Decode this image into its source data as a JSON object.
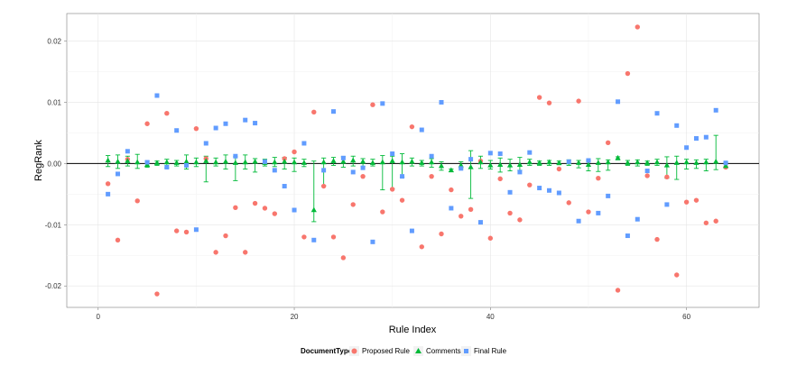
{
  "chart_data": {
    "type": "scatter",
    "title": "",
    "xlabel": "Rule Index",
    "ylabel": "RegRank",
    "xlim": [
      -3.2,
      67.4
    ],
    "ylim": [
      -0.0235,
      0.0245
    ],
    "x_ticks": [
      0,
      20,
      40,
      60
    ],
    "x_tick_labels": [
      "0",
      "20",
      "40",
      "60"
    ],
    "y_ticks": [
      -0.02,
      -0.01,
      0.0,
      0.01,
      0.02
    ],
    "y_tick_labels": [
      "-0.02",
      "-0.01",
      "0.00",
      "0.01",
      "0.02"
    ],
    "grid": true,
    "reference_line_y": 0,
    "legend": {
      "title": "DocumentType",
      "position": "bottom"
    },
    "colors": {
      "Proposed Rule": "#F8766D",
      "Comments": "#00BA38",
      "Final Rule": "#619CFF"
    },
    "series": [
      {
        "name": "Proposed Rule",
        "marker": "circle",
        "points": [
          [
            1,
            -0.0033
          ],
          [
            2,
            -0.0125
          ],
          [
            3,
            0.0007
          ],
          [
            4,
            -0.0061
          ],
          [
            5,
            0.0065
          ],
          [
            6,
            -0.0213
          ],
          [
            7,
            0.0082
          ],
          [
            8,
            -0.011
          ],
          [
            9,
            -0.0112
          ],
          [
            10,
            0.0057
          ],
          [
            11,
            0.0008
          ],
          [
            12,
            -0.0145
          ],
          [
            13,
            -0.0118
          ],
          [
            14,
            -0.0072
          ],
          [
            15,
            -0.0145
          ],
          [
            16,
            -0.0065
          ],
          [
            17,
            -0.0073
          ],
          [
            18,
            -0.0082
          ],
          [
            19,
            0.0008
          ],
          [
            20,
            0.0019
          ],
          [
            21,
            -0.012
          ],
          [
            22,
            0.0084
          ],
          [
            23,
            -0.0037
          ],
          [
            24,
            -0.012
          ],
          [
            25,
            -0.0154
          ],
          [
            26,
            -0.0067
          ],
          [
            27,
            -0.0021
          ],
          [
            28,
            0.0096
          ],
          [
            29,
            -0.0079
          ],
          [
            30,
            -0.0042
          ],
          [
            31,
            -0.006
          ],
          [
            32,
            0.006
          ],
          [
            33,
            -0.0136
          ],
          [
            34,
            -0.0021
          ],
          [
            35,
            -0.0115
          ],
          [
            36,
            -0.0043
          ],
          [
            37,
            -0.0086
          ],
          [
            38,
            -0.0075
          ],
          [
            39,
            0.0004
          ],
          [
            40,
            -0.0122
          ],
          [
            41,
            -0.0025
          ],
          [
            42,
            -0.0081
          ],
          [
            43,
            -0.0092
          ],
          [
            44,
            -0.0035
          ],
          [
            45,
            0.0108
          ],
          [
            46,
            0.0099
          ],
          [
            47,
            -0.0009
          ],
          [
            48,
            -0.0064
          ],
          [
            49,
            0.0102
          ],
          [
            50,
            -0.0079
          ],
          [
            51,
            -0.0024
          ],
          [
            52,
            0.0034
          ],
          [
            53,
            -0.0207
          ],
          [
            54,
            0.0147
          ],
          [
            55,
            0.0223
          ],
          [
            56,
            -0.002
          ],
          [
            57,
            -0.0124
          ],
          [
            58,
            -0.0022
          ],
          [
            59,
            -0.0182
          ],
          [
            60,
            -0.0063
          ],
          [
            61,
            -0.006
          ],
          [
            62,
            -0.0097
          ],
          [
            63,
            -0.0094
          ],
          [
            64,
            -0.0006
          ]
        ]
      },
      {
        "name": "Comments",
        "marker": "triangle",
        "points": [
          [
            1,
            0.0005
          ],
          [
            2,
            0.0003
          ],
          [
            3,
            0.0004
          ],
          [
            4,
            0.0002
          ],
          [
            5,
            -0.0002
          ],
          [
            6,
            0.0001
          ],
          [
            7,
            0.0002
          ],
          [
            8,
            0.0001
          ],
          [
            9,
            0.0003
          ],
          [
            10,
            0.0002
          ],
          [
            11,
            0.0004
          ],
          [
            12,
            0.0002
          ],
          [
            13,
            0.0003
          ],
          [
            14,
            0.0001
          ],
          [
            15,
            0.0002
          ],
          [
            16,
            0.0003
          ],
          [
            17,
            0.0001
          ],
          [
            18,
            0.0002
          ],
          [
            19,
            0.0003
          ],
          [
            20,
            0.0002
          ],
          [
            21,
            0.0001
          ],
          [
            22,
            -0.0076
          ],
          [
            23,
            0.0002
          ],
          [
            24,
            0.0004
          ],
          [
            25,
            0.0003
          ],
          [
            26,
            0.0005
          ],
          [
            27,
            0.0003
          ],
          [
            28,
            0.0001
          ],
          [
            29,
            0.0002
          ],
          [
            30,
            0.0004
          ],
          [
            31,
            0.0002
          ],
          [
            32,
            0.0003
          ],
          [
            33,
            0.0001
          ],
          [
            34,
            0.0002
          ],
          [
            35,
            -0.0004
          ],
          [
            36,
            -0.0011
          ],
          [
            37,
            -0.0003
          ],
          [
            38,
            -0.0006
          ],
          [
            39,
            0.0002
          ],
          [
            40,
            -0.0003
          ],
          [
            41,
            -0.0002
          ],
          [
            42,
            -0.0003
          ],
          [
            43,
            -0.0002
          ],
          [
            44,
            0.0002
          ],
          [
            45,
            0.0001
          ],
          [
            46,
            0.0002
          ],
          [
            47,
            0.0001
          ],
          [
            48,
            0.0002
          ],
          [
            49,
            0.0001
          ],
          [
            50,
            -0.0002
          ],
          [
            51,
            0.0001
          ],
          [
            52,
            0.0002
          ],
          [
            53,
            0.0009
          ],
          [
            54,
            0.0001
          ],
          [
            55,
            0.0002
          ],
          [
            56,
            0.0001
          ],
          [
            57,
            0.0002
          ],
          [
            58,
            -0.0003
          ],
          [
            59,
            0.0001
          ],
          [
            60,
            0.0002
          ],
          [
            61,
            0.0001
          ],
          [
            62,
            0.0002
          ],
          [
            63,
            0.0003
          ],
          [
            64,
            -0.0004
          ]
        ],
        "error_bars": [
          [
            1,
            -0.0005,
            0.0013
          ],
          [
            2,
            -0.0008,
            0.0014
          ],
          [
            3,
            -0.0004,
            0.0012
          ],
          [
            4,
            -0.0008,
            0.0015
          ],
          [
            5,
            -0.0006,
            0.0004
          ],
          [
            6,
            -0.0003,
            0.0004
          ],
          [
            7,
            -0.0007,
            0.0007
          ],
          [
            8,
            -0.0004,
            0.0005
          ],
          [
            9,
            -0.0009,
            0.0014
          ],
          [
            10,
            -0.0005,
            0.0009
          ],
          [
            11,
            -0.003,
            0.0012
          ],
          [
            12,
            -0.0004,
            0.0009
          ],
          [
            13,
            -0.0009,
            0.0014
          ],
          [
            14,
            -0.0028,
            0.0011
          ],
          [
            15,
            -0.0009,
            0.0014
          ],
          [
            16,
            -0.0014,
            0.0008
          ],
          [
            17,
            -0.0004,
            0.0007
          ],
          [
            18,
            -0.0005,
            0.001
          ],
          [
            19,
            -0.0009,
            0.001
          ],
          [
            20,
            -0.0013,
            0.0009
          ],
          [
            21,
            -0.0005,
            0.0007
          ],
          [
            22,
            -0.0095,
            0.0004
          ],
          [
            23,
            -0.0036,
            0.0009
          ],
          [
            24,
            -0.0003,
            0.001
          ],
          [
            25,
            -0.0006,
            0.0011
          ],
          [
            26,
            -0.0004,
            0.0012
          ],
          [
            27,
            -0.0005,
            0.0008
          ],
          [
            28,
            -0.0004,
            0.0007
          ],
          [
            29,
            -0.0043,
            0.0013
          ],
          [
            30,
            -0.0041,
            0.0012
          ],
          [
            31,
            -0.0022,
            0.0016
          ],
          [
            32,
            -0.0004,
            0.0009
          ],
          [
            33,
            -0.0004,
            0.0005
          ],
          [
            34,
            -0.0006,
            0.0008
          ],
          [
            35,
            -0.0011,
            0.0003
          ],
          [
            36,
            -0.0013,
            -0.0009
          ],
          [
            37,
            -0.0008,
            0.0003
          ],
          [
            38,
            -0.0057,
            0.0021
          ],
          [
            39,
            -0.0008,
            0.0012
          ],
          [
            40,
            -0.0009,
            0.0005
          ],
          [
            41,
            -0.0014,
            0.0009
          ],
          [
            42,
            -0.0012,
            0.0007
          ],
          [
            43,
            -0.0011,
            0.001
          ],
          [
            44,
            -0.0003,
            0.0007
          ],
          [
            45,
            -0.0003,
            0.0004
          ],
          [
            46,
            -0.0003,
            0.0005
          ],
          [
            47,
            -0.0002,
            0.0004
          ],
          [
            48,
            -0.0003,
            0.0006
          ],
          [
            49,
            -0.0007,
            0.0005
          ],
          [
            50,
            -0.0012,
            0.0005
          ],
          [
            51,
            -0.0013,
            0.0008
          ],
          [
            52,
            -0.0011,
            0.0006
          ],
          [
            53,
            0.0006,
            0.0011
          ],
          [
            54,
            -0.0003,
            0.0005
          ],
          [
            55,
            -0.0004,
            0.0006
          ],
          [
            56,
            -0.0003,
            0.0004
          ],
          [
            57,
            -0.0003,
            0.0007
          ],
          [
            58,
            -0.0024,
            0.0011
          ],
          [
            59,
            -0.0026,
            0.0012
          ],
          [
            60,
            -0.0009,
            0.0007
          ],
          [
            61,
            -0.0008,
            0.0006
          ],
          [
            62,
            -0.0012,
            0.0007
          ],
          [
            63,
            -0.001,
            0.0046
          ],
          [
            64,
            -0.0006,
            0.0002
          ]
        ]
      },
      {
        "name": "Final Rule",
        "marker": "square",
        "points": [
          [
            1,
            -0.005
          ],
          [
            2,
            -0.0017
          ],
          [
            3,
            0.002
          ],
          [
            5,
            0.0002
          ],
          [
            6,
            0.0111
          ],
          [
            7,
            -0.0006
          ],
          [
            8,
            0.0054
          ],
          [
            9,
            -0.0003
          ],
          [
            10,
            -0.0108
          ],
          [
            11,
            0.0033
          ],
          [
            12,
            0.0058
          ],
          [
            13,
            0.0065
          ],
          [
            14,
            0.0012
          ],
          [
            15,
            0.0071
          ],
          [
            16,
            0.0066
          ],
          [
            17,
            0.0003
          ],
          [
            18,
            -0.0011
          ],
          [
            19,
            -0.0037
          ],
          [
            20,
            -0.0076
          ],
          [
            21,
            0.0033
          ],
          [
            22,
            -0.0125
          ],
          [
            23,
            -0.0011
          ],
          [
            24,
            0.0085
          ],
          [
            25,
            0.0009
          ],
          [
            26,
            -0.0014
          ],
          [
            27,
            -0.0007
          ],
          [
            28,
            -0.0128
          ],
          [
            29,
            0.0098
          ],
          [
            30,
            0.0016
          ],
          [
            31,
            -0.0021
          ],
          [
            32,
            -0.011
          ],
          [
            33,
            0.0055
          ],
          [
            34,
            0.0012
          ],
          [
            35,
            0.01
          ],
          [
            36,
            -0.0073
          ],
          [
            37,
            -0.0008
          ],
          [
            38,
            0.0007
          ],
          [
            39,
            -0.0096
          ],
          [
            40,
            0.0017
          ],
          [
            41,
            0.0016
          ],
          [
            42,
            -0.0047
          ],
          [
            43,
            -0.0014
          ],
          [
            44,
            0.0018
          ],
          [
            45,
            -0.004
          ],
          [
            46,
            -0.0044
          ],
          [
            47,
            -0.0048
          ],
          [
            48,
            0.0003
          ],
          [
            49,
            -0.0094
          ],
          [
            50,
            0.0005
          ],
          [
            51,
            -0.0081
          ],
          [
            52,
            -0.0053
          ],
          [
            53,
            0.0101
          ],
          [
            54,
            -0.0118
          ],
          [
            55,
            -0.0091
          ],
          [
            56,
            -0.0012
          ],
          [
            57,
            0.0082
          ],
          [
            58,
            -0.0067
          ],
          [
            59,
            0.0062
          ],
          [
            60,
            0.0026
          ],
          [
            61,
            0.0041
          ],
          [
            62,
            0.0043
          ],
          [
            63,
            0.0087
          ],
          [
            64,
            0.0001
          ]
        ]
      }
    ]
  }
}
